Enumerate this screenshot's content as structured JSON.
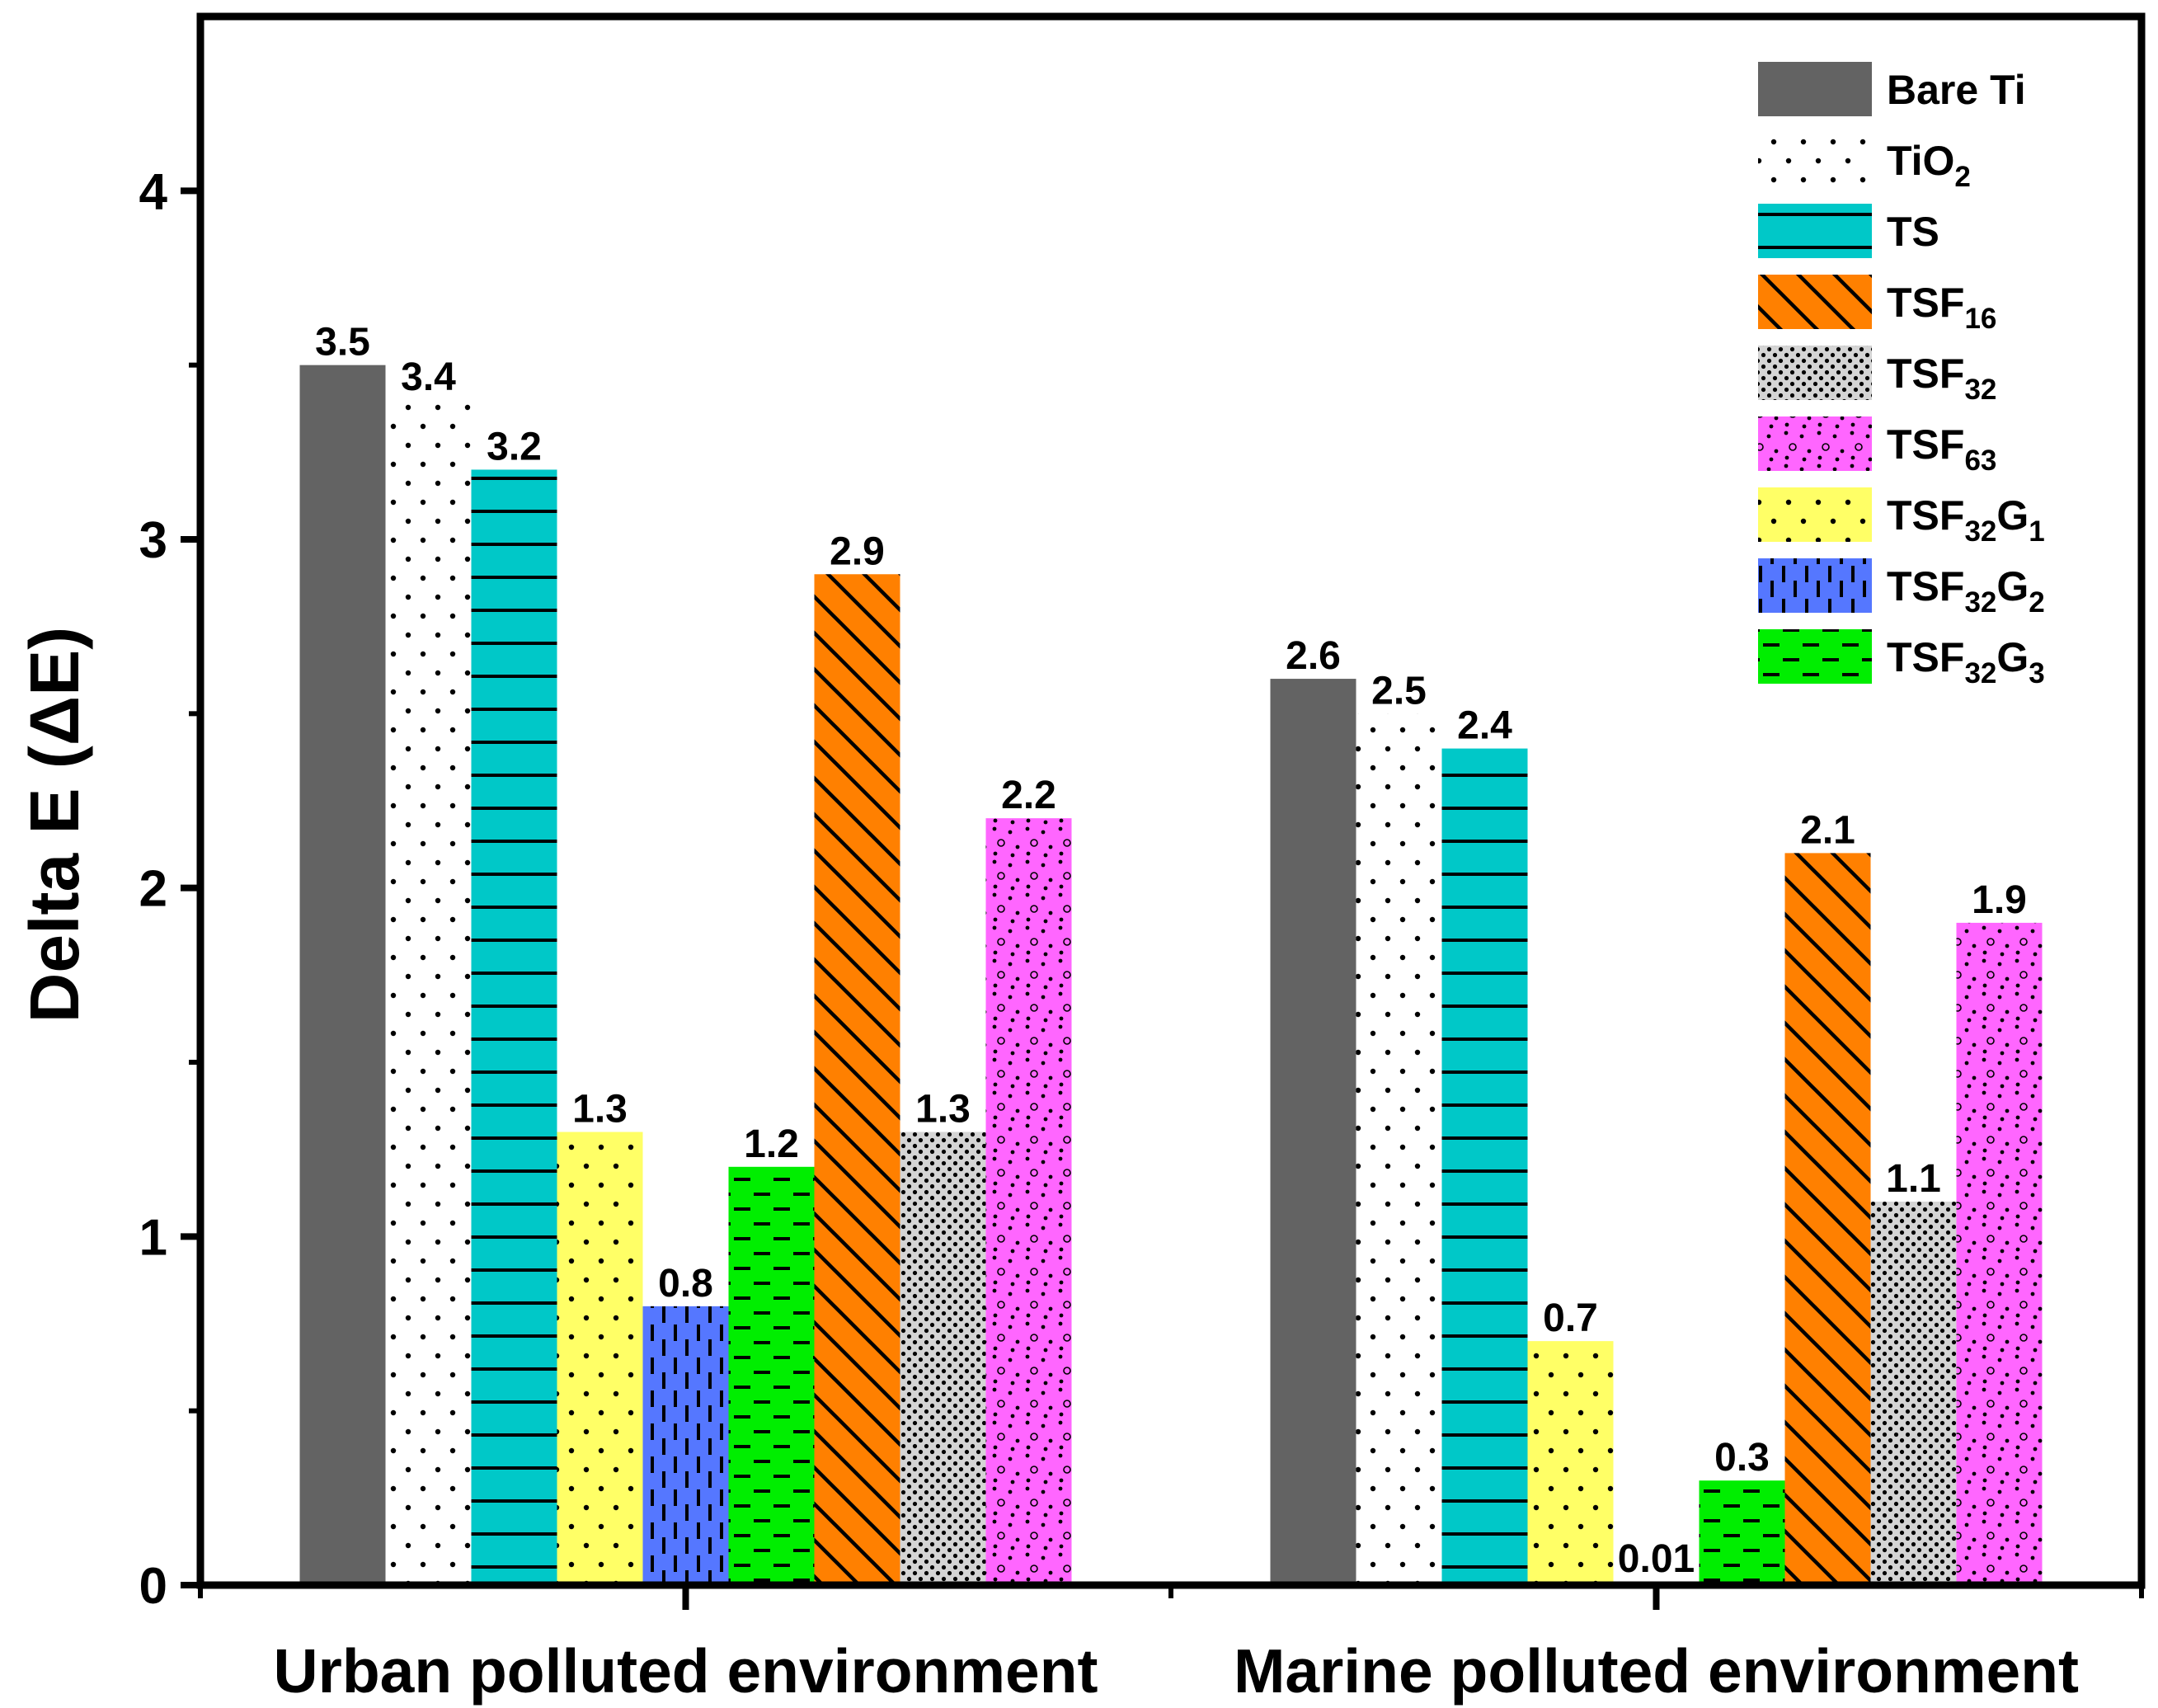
{
  "chart_data": {
    "type": "bar",
    "title": "",
    "xlabel": "",
    "ylabel": "Delta E (ΔE)",
    "ylim": [
      0,
      4.5
    ],
    "yticks": [
      0,
      1,
      2,
      3,
      4
    ],
    "grid": false,
    "legend_position": "top-right",
    "categories": [
      "Urban polluted environment",
      "Marine polluted environment"
    ],
    "series": [
      {
        "name": "Bare Ti",
        "base": "Bare Ti",
        "sub": "",
        "base2": "",
        "sub2": "",
        "color": "#636363",
        "pattern": "solid",
        "values": [
          3.5,
          2.6
        ],
        "labels": [
          "3.5",
          "2.6"
        ]
      },
      {
        "name": "TiO2",
        "base": "TiO",
        "sub": "2",
        "base2": "",
        "sub2": "",
        "color": "#ffffff",
        "pattern": "sparse-dots",
        "values": [
          3.4,
          2.5
        ],
        "labels": [
          "3.4",
          "2.5"
        ]
      },
      {
        "name": "TS",
        "base": "TS",
        "sub": "",
        "base2": "",
        "sub2": "",
        "color": "#00c8c8",
        "pattern": "horizontal-lines",
        "values": [
          3.2,
          2.4
        ],
        "labels": [
          "3.2",
          "2.4"
        ]
      },
      {
        "name": "TSF16",
        "base": "TSF",
        "sub": "16",
        "base2": "",
        "sub2": "",
        "color": "#ff8000",
        "pattern": "diagonal-hatch",
        "values": [
          2.9,
          2.1
        ],
        "labels": [
          "2.9",
          "2.1"
        ]
      },
      {
        "name": "TSF32",
        "base": "TSF",
        "sub": "32",
        "base2": "",
        "sub2": "",
        "color": "#d4d4d4",
        "pattern": "dense-dots",
        "values": [
          1.3,
          1.1
        ],
        "labels": [
          "1.3",
          "1.1"
        ]
      },
      {
        "name": "TSF63",
        "base": "TSF",
        "sub": "63",
        "base2": "",
        "sub2": "",
        "color": "#ff66ff",
        "pattern": "dots-and-circles",
        "values": [
          2.2,
          1.9
        ],
        "labels": [
          "2.2",
          "1.9"
        ]
      },
      {
        "name": "TSF32G1",
        "base": "TSF",
        "sub": "32",
        "base2": "G",
        "sub2": "1",
        "color": "#ffff66",
        "pattern": "sparse-dots",
        "values": [
          1.3,
          0.7
        ],
        "labels": [
          "1.3",
          "0.7"
        ]
      },
      {
        "name": "TSF32G2",
        "base": "TSF",
        "sub": "32",
        "base2": "G",
        "sub2": "2",
        "color": "#5577ff",
        "pattern": "vertical-dashes",
        "values": [
          0.8,
          0.01
        ],
        "labels": [
          "0.8",
          "0.01"
        ]
      },
      {
        "name": "TSF32G3",
        "base": "TSF",
        "sub": "32",
        "base2": "G",
        "sub2": "3",
        "color": "#00ee00",
        "pattern": "horizontal-dashes",
        "values": [
          1.2,
          0.3
        ],
        "labels": [
          "1.2",
          "0.3"
        ]
      }
    ],
    "bar_order": [
      "Bare Ti",
      "TiO2",
      "TS",
      "TSF32G1",
      "TSF32G2",
      "TSF32G3",
      "TSF16",
      "TSF32",
      "TSF63"
    ]
  }
}
